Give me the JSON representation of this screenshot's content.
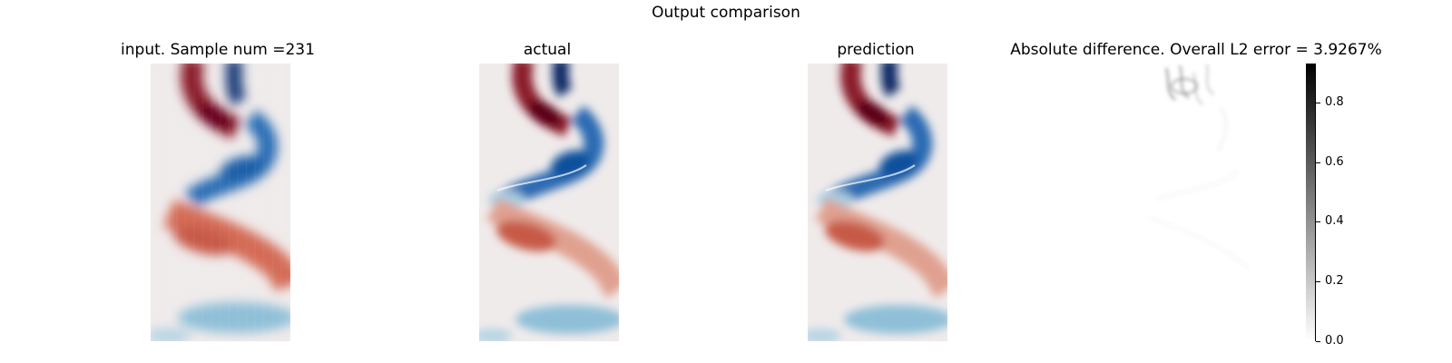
{
  "figure": {
    "title": "Output comparison",
    "panels": [
      {
        "id": "input",
        "title": "input. Sample num =231"
      },
      {
        "id": "actual",
        "title": "actual"
      },
      {
        "id": "prediction",
        "title": "prediction"
      },
      {
        "id": "difference",
        "title": "Absolute difference. Overall L2 error = 3.9267%"
      }
    ]
  },
  "chart_data": {
    "type": "heatmap",
    "sample_num": 231,
    "overall_l2_error_percent": 3.9267,
    "field_colormap": "diverging red-white-blue",
    "difference_colormap": "grayscale (white=0, black=max)",
    "colorbar": {
      "ticks": [
        0.0,
        0.2,
        0.4,
        0.6,
        0.8
      ],
      "tick_labels": [
        "0.0",
        "0.2",
        "0.4",
        "0.6",
        "0.8"
      ],
      "range": [
        0.0,
        0.93
      ]
    },
    "axes_visible": false,
    "colors": {
      "positive": "#67001f",
      "negative": "#053061",
      "neutral": "#f0ebeb"
    }
  }
}
